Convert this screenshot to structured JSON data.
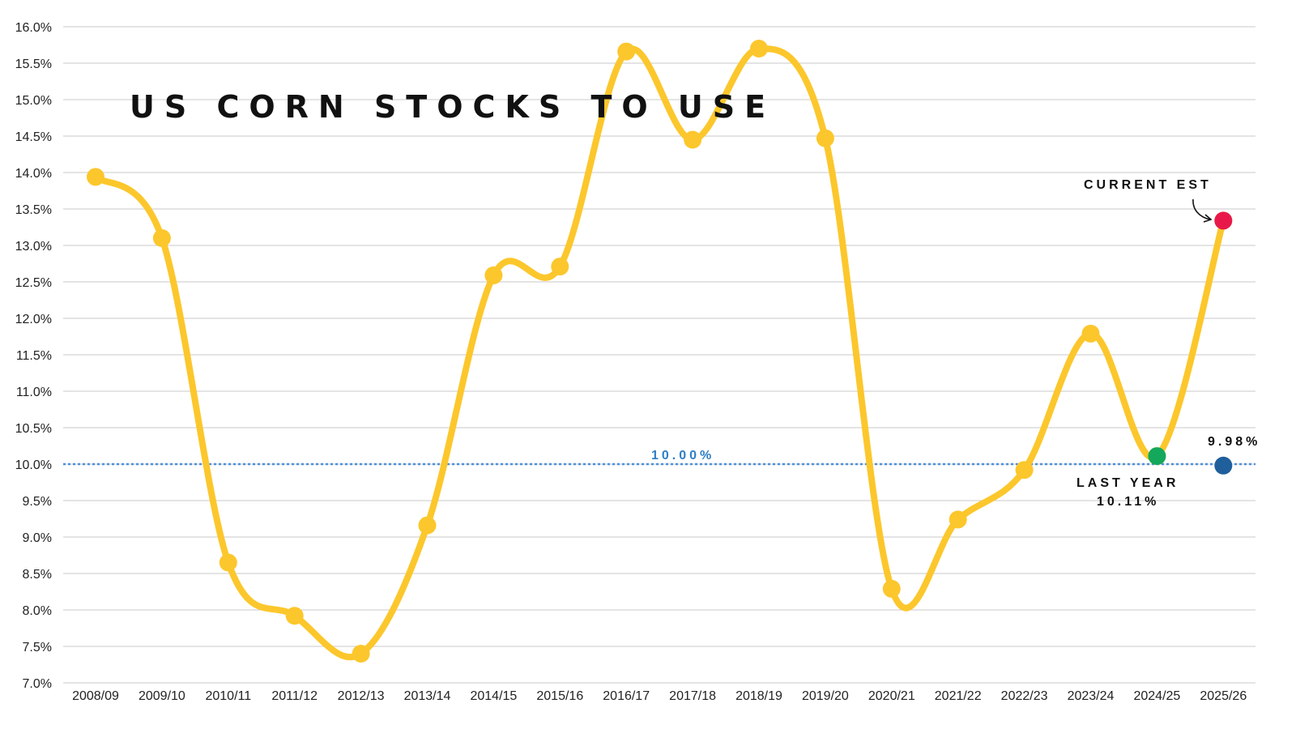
{
  "chart_data": {
    "type": "line",
    "title": "US CORN STOCKS TO USE",
    "xlabel": "",
    "ylabel": "",
    "ylim": [
      7.0,
      16.0
    ],
    "y_ticks": [
      "7.0%",
      "7.5%",
      "8.0%",
      "8.5%",
      "9.0%",
      "9.5%",
      "10.0%",
      "10.5%",
      "11.0%",
      "11.5%",
      "12.0%",
      "12.5%",
      "13.0%",
      "13.5%",
      "14.0%",
      "14.5%",
      "15.0%",
      "15.5%",
      "16.0%"
    ],
    "grid": true,
    "categories": [
      "2008/09",
      "2009/10",
      "2010/11",
      "2011/12",
      "2012/13",
      "2013/14",
      "2014/15",
      "2015/16",
      "2016/17",
      "2017/18",
      "2018/19",
      "2019/20",
      "2020/21",
      "2021/22",
      "2022/23",
      "2023/24",
      "2024/25",
      "2025/26"
    ],
    "series": [
      {
        "values": [
          13.94,
          13.1,
          8.65,
          7.92,
          7.4,
          9.16,
          12.59,
          12.71,
          15.66,
          14.45,
          15.7,
          14.47,
          8.29,
          9.24,
          9.92,
          11.79,
          10.11,
          13.34
        ]
      }
    ],
    "highlights": [
      {
        "category": "2024/25",
        "value": 10.11,
        "color": "#13a85c"
      },
      {
        "category": "2025/26",
        "value": 13.34,
        "color": "#e8194a"
      },
      {
        "category": "2025/26",
        "value": 9.98,
        "color": "#1f5f9c"
      }
    ],
    "reference_line": {
      "value": 10.0,
      "label": "10.00%",
      "color": "#4a90d9"
    },
    "annotations": {
      "current_est": "CURRENT EST",
      "last_year_line1": "LAST YEAR",
      "last_year_line2": "10.11%",
      "marker_value": "9.98%"
    },
    "colors": {
      "line": "#fcc72c",
      "grid": "#c8c8c8",
      "ref_label": "#2e7fc6"
    }
  }
}
